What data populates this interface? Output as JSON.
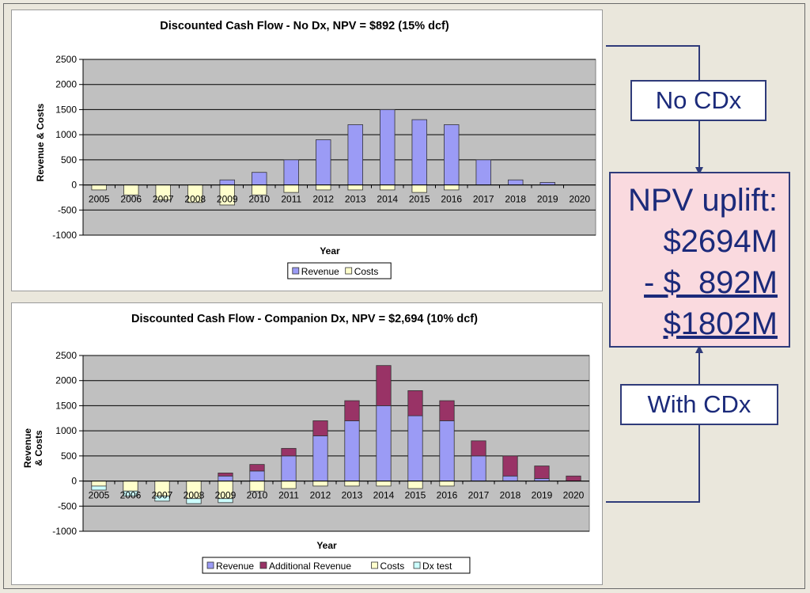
{
  "colors": {
    "revenue": "#9b9bf5",
    "additional_revenue": "#993366",
    "costs": "#ffffcc",
    "dx_test": "#ccffff",
    "plot_bg": "#c0c0c0",
    "accent": "#1b2a7a"
  },
  "callouts": {
    "no_cdx": "No CDx",
    "with_cdx": "With CDx",
    "npv_title": "NPV uplift:",
    "npv_with": "$2694M",
    "npv_minus": "- $  892M",
    "npv_result": "$1802M"
  },
  "chart_data": [
    {
      "type": "bar",
      "stacked": true,
      "title": "Discounted Cash Flow - No Dx, NPV = $892 (15%  dcf)",
      "xlabel": "Year",
      "ylabel": "Revenue & Costs",
      "ylim": [
        -1000,
        2500
      ],
      "yticks": [
        2500,
        2000,
        1500,
        1000,
        500,
        0,
        -500,
        -1000
      ],
      "categories": [
        "2005",
        "2006",
        "2007",
        "2008",
        "2009",
        "2010",
        "2011",
        "2012",
        "2013",
        "2014",
        "2015",
        "2016",
        "2017",
        "2018",
        "2019",
        "2020"
      ],
      "series": [
        {
          "name": "Revenue",
          "color": "#9b9bf5",
          "values": [
            0,
            0,
            0,
            0,
            100,
            250,
            500,
            900,
            1200,
            1500,
            1300,
            1200,
            500,
            100,
            50,
            0
          ]
        },
        {
          "name": "Costs",
          "color": "#ffffcc",
          "values": [
            -100,
            -200,
            -300,
            -350,
            -400,
            -200,
            -150,
            -100,
            -100,
            -100,
            -150,
            -100,
            0,
            0,
            0,
            0
          ]
        }
      ],
      "legend": [
        "Revenue",
        "Costs"
      ],
      "legend_position": "bottom"
    },
    {
      "type": "bar",
      "stacked": true,
      "title": "Discounted Cash Flow - Companion Dx, NPV = $2,694 (10%  dcf)",
      "xlabel": "Year",
      "ylabel": "Revenue & Costs",
      "ylabel_lines": [
        "Revenue",
        "& Costs"
      ],
      "ylim": [
        -1000,
        2500
      ],
      "yticks": [
        2500,
        2000,
        1500,
        1000,
        500,
        0,
        -500,
        -1000
      ],
      "categories": [
        "2005",
        "2006",
        "2007",
        "2008",
        "2009",
        "2010",
        "2011",
        "2012",
        "2013",
        "2014",
        "2015",
        "2016",
        "2017",
        "2018",
        "2019",
        "2020"
      ],
      "series": [
        {
          "name": "Revenue",
          "color": "#9b9bf5",
          "values": [
            0,
            0,
            0,
            0,
            100,
            200,
            500,
            900,
            1200,
            1500,
            1300,
            1200,
            500,
            100,
            50,
            0
          ]
        },
        {
          "name": "Additional Revenue",
          "color": "#993366",
          "values": [
            0,
            0,
            0,
            0,
            60,
            130,
            150,
            300,
            400,
            800,
            500,
            400,
            300,
            400,
            250,
            100
          ]
        },
        {
          "name": "Costs",
          "color": "#ffffcc",
          "values": [
            -100,
            -200,
            -300,
            -350,
            -350,
            -200,
            -150,
            -100,
            -100,
            -100,
            -150,
            -100,
            0,
            0,
            0,
            0
          ]
        },
        {
          "name": "Dx test",
          "color": "#ccffff",
          "values": [
            -80,
            -100,
            -100,
            -100,
            -80,
            0,
            0,
            0,
            0,
            0,
            0,
            0,
            0,
            0,
            0,
            0
          ]
        }
      ],
      "legend": [
        "Revenue",
        "Additional Revenue",
        "Costs",
        "Dx test"
      ],
      "legend_position": "bottom"
    }
  ]
}
